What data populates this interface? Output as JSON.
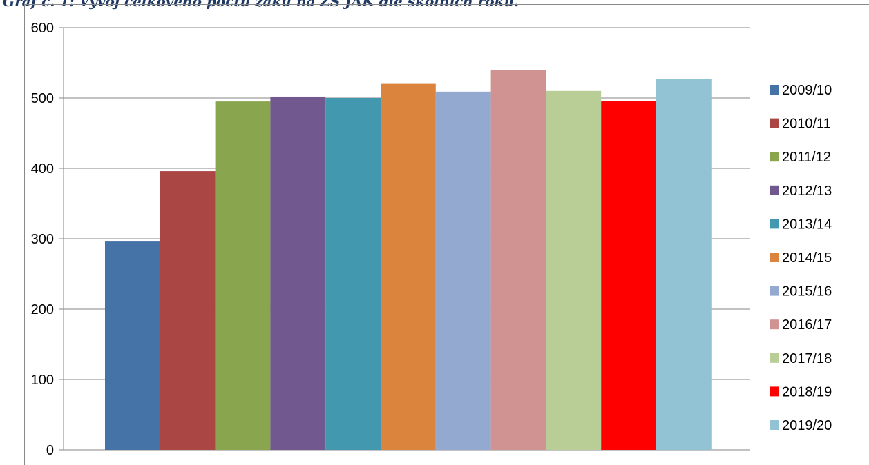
{
  "page": {
    "title": "Graf č. 1: Vývoj celkového počtu žáků na ZŠ JAK dle školních roků."
  },
  "chart_data": {
    "type": "bar",
    "title": "",
    "xlabel": "",
    "ylabel": "",
    "ylim": [
      0,
      600
    ],
    "yticks": [
      0,
      100,
      200,
      300,
      400,
      500,
      600
    ],
    "grid": true,
    "legend_position": "right",
    "series": [
      {
        "name": "2009/10",
        "value": 296,
        "color": "#4572a7"
      },
      {
        "name": "2010/11",
        "value": 396,
        "color": "#aa4643"
      },
      {
        "name": "2011/12",
        "value": 495,
        "color": "#89a54e"
      },
      {
        "name": "2012/13",
        "value": 502,
        "color": "#71588f"
      },
      {
        "name": "2013/14",
        "value": 500,
        "color": "#4198af"
      },
      {
        "name": "2014/15",
        "value": 520,
        "color": "#db843d"
      },
      {
        "name": "2015/16",
        "value": 509,
        "color": "#93a9cf"
      },
      {
        "name": "2016/17",
        "value": 540,
        "color": "#d19392"
      },
      {
        "name": "2017/18",
        "value": 510,
        "color": "#b9cd96"
      },
      {
        "name": "2018/19",
        "value": 496,
        "color": "#ff0000"
      },
      {
        "name": "2019/20",
        "value": 527,
        "color": "#92c3d4"
      }
    ]
  }
}
